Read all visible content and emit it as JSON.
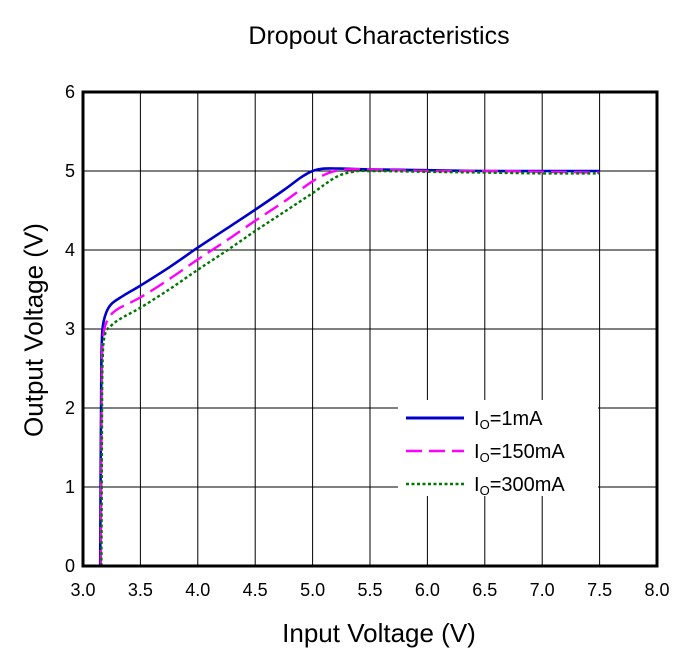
{
  "chart_data": {
    "type": "line",
    "title": "Dropout Characteristics",
    "xlabel": "Input Voltage (V)",
    "ylabel": "Output Voltage (V)",
    "xlim": [
      3.0,
      8.0
    ],
    "ylim": [
      0,
      6
    ],
    "xticks": [
      3.0,
      3.5,
      4.0,
      4.5,
      5.0,
      5.5,
      6.0,
      6.5,
      7.0,
      7.5,
      8.0
    ],
    "xtick_labels": [
      "3.0",
      "3.5",
      "4.0",
      "4.5",
      "5.0",
      "5.5",
      "6.0",
      "6.5",
      "7.0",
      "7.5",
      "8.0"
    ],
    "yticks": [
      0,
      1,
      2,
      3,
      4,
      5,
      6
    ],
    "ytick_labels": [
      "0",
      "1",
      "2",
      "3",
      "4",
      "5",
      "6"
    ],
    "grid": true,
    "legend_position": "lower-right",
    "series": [
      {
        "name_main": "I",
        "name_sub": "O",
        "name_rest": "=1mA",
        "color": "#0000cc",
        "style": "solid",
        "points": [
          [
            3.15,
            0
          ],
          [
            3.155,
            1.5
          ],
          [
            3.16,
            2.6
          ],
          [
            3.17,
            3.0
          ],
          [
            3.2,
            3.2
          ],
          [
            3.25,
            3.32
          ],
          [
            3.35,
            3.42
          ],
          [
            3.5,
            3.55
          ],
          [
            3.75,
            3.78
          ],
          [
            4.0,
            4.03
          ],
          [
            4.25,
            4.27
          ],
          [
            4.5,
            4.51
          ],
          [
            4.75,
            4.76
          ],
          [
            4.9,
            4.92
          ],
          [
            5.0,
            5.0
          ],
          [
            5.1,
            5.03
          ],
          [
            5.25,
            5.03
          ],
          [
            5.5,
            5.02
          ],
          [
            6.0,
            5.01
          ],
          [
            6.5,
            5.0
          ],
          [
            7.0,
            5.0
          ],
          [
            7.5,
            5.0
          ]
        ]
      },
      {
        "name_main": "I",
        "name_sub": "O",
        "name_rest": "=150mA",
        "color": "#ff00ff",
        "style": "dashed",
        "points": [
          [
            3.155,
            0
          ],
          [
            3.16,
            1.5
          ],
          [
            3.165,
            2.55
          ],
          [
            3.18,
            2.95
          ],
          [
            3.22,
            3.13
          ],
          [
            3.3,
            3.25
          ],
          [
            3.5,
            3.4
          ],
          [
            3.75,
            3.63
          ],
          [
            4.0,
            3.88
          ],
          [
            4.25,
            4.12
          ],
          [
            4.5,
            4.37
          ],
          [
            4.75,
            4.61
          ],
          [
            5.0,
            4.87
          ],
          [
            5.15,
            4.98
          ],
          [
            5.3,
            5.02
          ],
          [
            5.5,
            5.02
          ],
          [
            6.0,
            5.0
          ],
          [
            6.5,
            5.0
          ],
          [
            7.0,
            4.99
          ],
          [
            7.5,
            4.98
          ]
        ]
      },
      {
        "name_main": "I",
        "name_sub": "O",
        "name_rest": "=300mA",
        "color": "#007700",
        "style": "dotted",
        "points": [
          [
            3.16,
            0
          ],
          [
            3.165,
            1.5
          ],
          [
            3.17,
            2.55
          ],
          [
            3.19,
            2.92
          ],
          [
            3.25,
            3.05
          ],
          [
            3.35,
            3.15
          ],
          [
            3.5,
            3.27
          ],
          [
            3.75,
            3.5
          ],
          [
            4.0,
            3.75
          ],
          [
            4.25,
            3.99
          ],
          [
            4.5,
            4.24
          ],
          [
            4.75,
            4.48
          ],
          [
            5.0,
            4.72
          ],
          [
            5.2,
            4.92
          ],
          [
            5.35,
            4.99
          ],
          [
            5.5,
            5.0
          ],
          [
            6.0,
            4.99
          ],
          [
            6.5,
            4.98
          ],
          [
            7.0,
            4.97
          ],
          [
            7.5,
            4.97
          ]
        ]
      }
    ]
  }
}
